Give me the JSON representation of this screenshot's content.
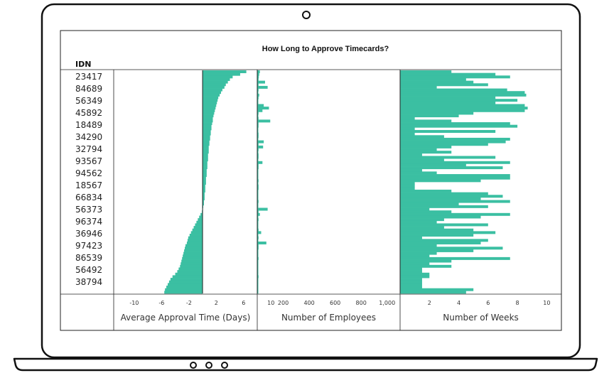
{
  "chart_data": {
    "type": "bar",
    "title": "How Long to Approve Timecards?",
    "row_header": "IDN",
    "id_labels": [
      "23417",
      "84689",
      "56349",
      "45892",
      "18489",
      "34290",
      "32794",
      "93567",
      "94562",
      "18567",
      "66834",
      "56373",
      "96374",
      "36946",
      "97423",
      "86539",
      "56492",
      "38794"
    ],
    "panels": [
      {
        "name": "approval",
        "xlabel": "Average Approval Time (Days)",
        "xlim": [
          -13,
          8
        ],
        "ticks": [
          -10,
          -6,
          -2,
          2,
          6,
          10
        ],
        "tick_labels": [
          "-10",
          "-6",
          "-2",
          "2",
          "6",
          "10"
        ],
        "baseline": 0,
        "values": [
          6.4,
          5.5,
          4.4,
          4.0,
          3.7,
          3.4,
          3.2,
          2.9,
          2.7,
          2.5,
          2.3,
          2.2,
          2.1,
          2.0,
          1.9,
          1.8,
          1.7,
          1.6,
          1.5,
          1.5,
          1.4,
          1.3,
          1.3,
          1.2,
          1.2,
          1.1,
          1.1,
          1.0,
          1.0,
          0.9,
          0.9,
          0.9,
          0.8,
          0.8,
          0.8,
          0.7,
          0.7,
          0.7,
          0.6,
          0.6,
          0.6,
          0.5,
          0.5,
          0.5,
          0.4,
          0.4,
          0.4,
          0.3,
          0.3,
          0.3,
          0.2,
          0.2,
          0.1,
          0.0,
          -0.1,
          -0.3,
          -0.5,
          -0.7,
          -0.9,
          -1.1,
          -1.3,
          -1.5,
          -1.7,
          -1.9,
          -2.1,
          -2.2,
          -2.3,
          -2.5,
          -2.6,
          -2.7,
          -2.8,
          -2.9,
          -3.0,
          -3.1,
          -3.2,
          -3.3,
          -3.5,
          -3.7,
          -4.0,
          -4.4,
          -4.7,
          -4.9,
          -5.1,
          -5.3,
          -5.5,
          -5.6
        ]
      },
      {
        "name": "employees",
        "xlabel": "Number of Employees",
        "xlim": [
          0,
          1100
        ],
        "ticks": [
          200,
          400,
          600,
          800,
          1000
        ],
        "tick_labels": [
          "200",
          "400",
          "600",
          "800",
          "1,000"
        ],
        "baseline": 0,
        "values": [
          20,
          15,
          12,
          10,
          60,
          10,
          80,
          10,
          8,
          15,
          10,
          8,
          8,
          50,
          90,
          40,
          10,
          8,
          10,
          100,
          10,
          10,
          8,
          8,
          10,
          10,
          8,
          50,
          10,
          45,
          10,
          8,
          10,
          10,
          8,
          40,
          10,
          10,
          8,
          8,
          8,
          8,
          10,
          8,
          10,
          10,
          8,
          8,
          8,
          8,
          10,
          8,
          8,
          80,
          10,
          20,
          8,
          10,
          8,
          8,
          8,
          10,
          30,
          8,
          10,
          8,
          70,
          10,
          10,
          8,
          8,
          8,
          10,
          8,
          8,
          8,
          8,
          8,
          8,
          10,
          8,
          8,
          8,
          8,
          8,
          8
        ]
      },
      {
        "name": "weeks",
        "xlabel": "Number of Weeks",
        "xlim": [
          0,
          11
        ],
        "ticks": [
          2,
          4,
          6,
          8,
          10
        ],
        "tick_labels": [
          "2",
          "4",
          "6",
          "8",
          "10"
        ],
        "baseline": 0,
        "values": [
          3.5,
          6.5,
          7.5,
          4.5,
          5.0,
          6.0,
          2.5,
          7.3,
          8.5,
          8.6,
          6.5,
          8.0,
          6.5,
          8.5,
          8.7,
          8.5,
          5.0,
          4.0,
          1.0,
          3.5,
          7.5,
          8.0,
          1.0,
          6.5,
          1.0,
          3.0,
          7.5,
          7.2,
          6.0,
          3.5,
          2.5,
          3.5,
          1.5,
          6.5,
          3.0,
          7.5,
          4.5,
          7.0,
          1.5,
          2.5,
          7.5,
          7.5,
          5.5,
          1.0,
          1.0,
          1.0,
          3.5,
          6.0,
          7.0,
          5.5,
          7.5,
          4.0,
          6.0,
          2.0,
          3.5,
          7.5,
          5.5,
          3.0,
          2.5,
          6.0,
          3.0,
          5.0,
          6.5,
          5.0,
          1.5,
          6.0,
          5.5,
          2.5,
          7.0,
          5.0,
          2.5,
          2.0,
          7.5,
          3.5,
          2.0,
          3.5,
          1.5,
          1.5,
          2.0,
          2.0,
          1.5,
          1.5,
          1.5,
          1.5,
          5.0,
          4.5
        ]
      }
    ],
    "colors": {
      "bar": "#3bbfa2",
      "frame": "#222222"
    }
  }
}
